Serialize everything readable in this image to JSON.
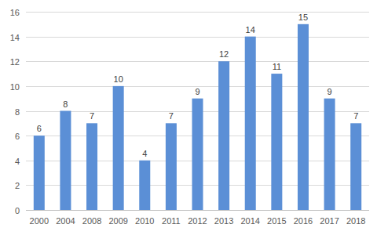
{
  "chart_data": {
    "type": "bar",
    "categories": [
      "2000",
      "2004",
      "2008",
      "2009",
      "2010",
      "2011",
      "2012",
      "2013",
      "2014",
      "2015",
      "2016",
      "2017",
      "2018"
    ],
    "values": [
      6,
      8,
      7,
      10,
      4,
      7,
      9,
      12,
      14,
      11,
      15,
      9,
      7
    ],
    "color": "#5b8fd6",
    "ylim": [
      0,
      16
    ],
    "yticks": [
      0,
      2,
      4,
      6,
      8,
      10,
      12,
      14,
      16
    ],
    "grid": true,
    "data_labels": true
  }
}
